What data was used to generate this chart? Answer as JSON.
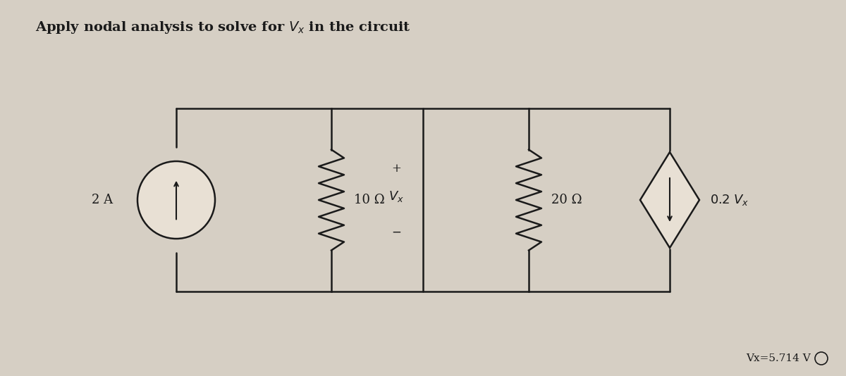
{
  "title": "Apply nodal analysis to solve for $V_x$ in the circuit",
  "background_color": "#d6cfc4",
  "circuit_bg": "#e8e0d4",
  "answer_text": "Vx=5.714 V",
  "current_source_label": "2 A",
  "resistor1_label": "10 Ω",
  "resistor2_label": "20 Ω",
  "dep_source_label": "0.2 Vₓ",
  "vx_label": "Vₓ",
  "vx_plus": "+",
  "vx_minus": "−"
}
